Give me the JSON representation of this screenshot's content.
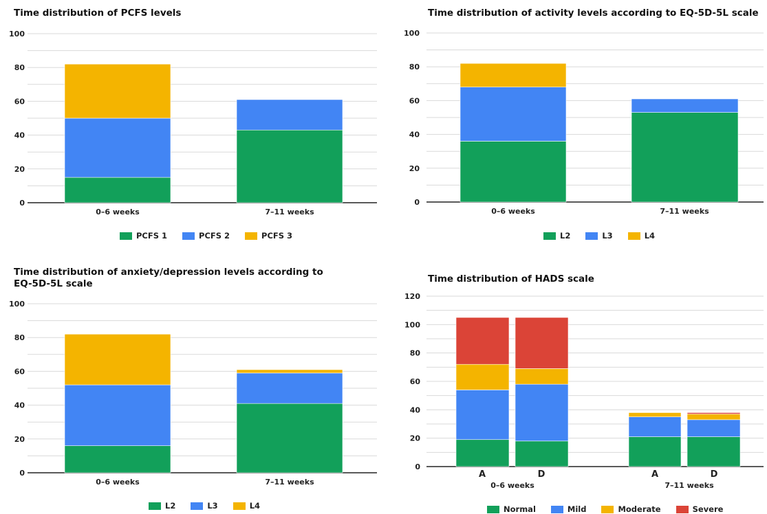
{
  "colors": {
    "green": "#12a05a",
    "blue": "#4285f4",
    "yellow": "#f4b400",
    "red": "#db4437",
    "grid": "#dadada",
    "axis": "#222222"
  },
  "chart_data": [
    {
      "type": "bar",
      "stacked": true,
      "title": "Time distribution of PCFS levels",
      "categories": [
        "0–6 weeks",
        "7–11 weeks"
      ],
      "ylim": [
        0,
        100
      ],
      "yticks": [
        0,
        20,
        40,
        60,
        80,
        100
      ],
      "grid": true,
      "legend_position": "bottom",
      "series": [
        {
          "name": "PCFS 1",
          "color": "green",
          "values": [
            15,
            43
          ]
        },
        {
          "name": "PCFS 2",
          "color": "blue",
          "values": [
            35,
            18
          ]
        },
        {
          "name": "PCFS 3",
          "color": "yellow",
          "values": [
            32,
            0
          ]
        }
      ]
    },
    {
      "type": "bar",
      "stacked": true,
      "title": "Time distribution of activity levels according to EQ-5D-5L scale",
      "categories": [
        "0–6 weeks",
        "7–11 weeks"
      ],
      "ylim": [
        0,
        100
      ],
      "yticks": [
        0,
        20,
        40,
        60,
        80,
        100
      ],
      "grid": true,
      "legend_position": "bottom",
      "series": [
        {
          "name": "L2",
          "color": "green",
          "values": [
            36,
            53
          ]
        },
        {
          "name": "L3",
          "color": "blue",
          "values": [
            32,
            8
          ]
        },
        {
          "name": "L4",
          "color": "yellow",
          "values": [
            14,
            0
          ]
        }
      ]
    },
    {
      "type": "bar",
      "stacked": true,
      "title": "Time distribution of anxiety/depression levels according to\nEQ-5D-5L scale",
      "categories": [
        "0–6 weeks",
        "7–11 weeks"
      ],
      "ylim": [
        0,
        100
      ],
      "yticks": [
        0,
        20,
        40,
        60,
        80,
        100
      ],
      "grid": true,
      "legend_position": "bottom",
      "series": [
        {
          "name": "L2",
          "color": "green",
          "values": [
            16,
            41
          ]
        },
        {
          "name": "L3",
          "color": "blue",
          "values": [
            36,
            18
          ]
        },
        {
          "name": "L4",
          "color": "yellow",
          "values": [
            30,
            2
          ]
        }
      ]
    },
    {
      "type": "bar",
      "stacked": true,
      "title": "Time distribution of HADS scale",
      "categories": [
        "A",
        "D",
        "A",
        "D"
      ],
      "groups": [
        "0–6 weeks",
        "7–11 weeks"
      ],
      "ylim": [
        0,
        120
      ],
      "yticks": [
        0,
        20,
        40,
        60,
        80,
        100,
        120
      ],
      "grid": true,
      "legend_position": "bottom",
      "series": [
        {
          "name": "Normal",
          "color": "green",
          "values": [
            19,
            18,
            21,
            21
          ]
        },
        {
          "name": "Mild",
          "color": "blue",
          "values": [
            35,
            40,
            14,
            12
          ]
        },
        {
          "name": "Moderate",
          "color": "yellow",
          "values": [
            18,
            11,
            3,
            4
          ]
        },
        {
          "name": "Severe",
          "color": "red",
          "values": [
            33,
            36,
            0,
            1
          ]
        }
      ]
    }
  ]
}
